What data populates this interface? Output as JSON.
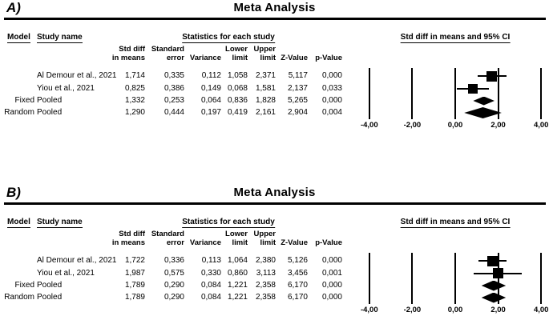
{
  "panels": [
    {
      "label": "A)",
      "title": "Meta Analysis",
      "columns": {
        "model": "Model",
        "study": "Study name",
        "stats_group": "Statistics for each study",
        "plot_group": "Std diff in means and 95% CI"
      },
      "stat_headers": [
        [
          "Std diff",
          "in means"
        ],
        [
          "Standard",
          "error"
        ],
        [
          "",
          "Variance"
        ],
        [
          "Lower",
          "limit"
        ],
        [
          "Upper",
          "limit"
        ],
        [
          "",
          "Z-Value"
        ],
        [
          "",
          "p-Value"
        ]
      ],
      "rows": [
        {
          "model": "",
          "study": "Al Demour et al., 2021",
          "values": [
            "1,714",
            "0,335",
            "0,112",
            "1,058",
            "2,371",
            "5,117",
            "0,000"
          ]
        },
        {
          "model": "",
          "study": "Yiou et al., 2021",
          "values": [
            "0,825",
            "0,386",
            "0,149",
            "0,068",
            "1,581",
            "2,137",
            "0,033"
          ]
        },
        {
          "model": "Fixed",
          "study": "Pooled",
          "values": [
            "1,332",
            "0,253",
            "0,064",
            "0,836",
            "1,828",
            "5,265",
            "0,000"
          ]
        },
        {
          "model": "Random",
          "study": "Pooled",
          "values": [
            "1,290",
            "0,444",
            "0,197",
            "0,419",
            "2,161",
            "2,904",
            "0,004"
          ]
        }
      ],
      "tick_labels": [
        "-4,00",
        "-2,00",
        "0,00",
        "2,00",
        "4,00"
      ]
    },
    {
      "label": "B)",
      "title": "Meta Analysis",
      "columns": {
        "model": "Model",
        "study": "Study name",
        "stats_group": "Statistics for each study",
        "plot_group": "Std diff in means and 95% CI"
      },
      "stat_headers": [
        [
          "Std diff",
          "in means"
        ],
        [
          "Standard",
          "error"
        ],
        [
          "",
          "Variance"
        ],
        [
          "Lower",
          "limit"
        ],
        [
          "Upper",
          "limit"
        ],
        [
          "",
          "Z-Value"
        ],
        [
          "",
          "p-Value"
        ]
      ],
      "rows": [
        {
          "model": "",
          "study": "Al Demour et al., 2021",
          "values": [
            "1,722",
            "0,336",
            "0,113",
            "1,064",
            "2,380",
            "5,126",
            "0,000"
          ]
        },
        {
          "model": "",
          "study": "Yiou et al., 2021",
          "values": [
            "1,987",
            "0,575",
            "0,330",
            "0,860",
            "3,113",
            "3,456",
            "0,001"
          ]
        },
        {
          "model": "Fixed",
          "study": "Pooled",
          "values": [
            "1,789",
            "0,290",
            "0,084",
            "1,221",
            "2,358",
            "6,170",
            "0,000"
          ]
        },
        {
          "model": "Random",
          "study": "Pooled",
          "values": [
            "1,789",
            "0,290",
            "0,084",
            "1,221",
            "2,358",
            "6,170",
            "0,000"
          ]
        }
      ],
      "tick_labels": [
        "-4,00",
        "-2,00",
        "0,00",
        "2,00",
        "4,00"
      ]
    }
  ],
  "chart_data": [
    {
      "type": "scatter",
      "subtype": "forest-plot",
      "panel": "A",
      "title": "Meta Analysis",
      "xlabel": "Std diff in means and 95% CI",
      "xlim": [
        -4,
        4
      ],
      "x_ticks": [
        -4,
        -2,
        0,
        2,
        4
      ],
      "studies": [
        {
          "model": "",
          "study": "Al Demour et al., 2021",
          "std_diff_in_means": 1.714,
          "standard_error": 0.335,
          "variance": 0.112,
          "lower_limit": 1.058,
          "upper_limit": 2.371,
          "z_value": 5.117,
          "p_value": 0.0,
          "marker": "square",
          "size": 13
        },
        {
          "model": "",
          "study": "Yiou et al., 2021",
          "std_diff_in_means": 0.825,
          "standard_error": 0.386,
          "variance": 0.149,
          "lower_limit": 0.068,
          "upper_limit": 1.581,
          "z_value": 2.137,
          "p_value": 0.033,
          "marker": "square",
          "size": 12
        },
        {
          "model": "Fixed",
          "study": "Pooled",
          "std_diff_in_means": 1.332,
          "standard_error": 0.253,
          "variance": 0.064,
          "lower_limit": 0.836,
          "upper_limit": 1.828,
          "z_value": 5.265,
          "p_value": 0.0,
          "marker": "diamond",
          "size": 11
        },
        {
          "model": "Random",
          "study": "Pooled",
          "std_diff_in_means": 1.29,
          "standard_error": 0.444,
          "variance": 0.197,
          "lower_limit": 0.419,
          "upper_limit": 2.161,
          "z_value": 2.904,
          "p_value": 0.004,
          "marker": "diamond",
          "size": 14
        }
      ]
    },
    {
      "type": "scatter",
      "subtype": "forest-plot",
      "panel": "B",
      "title": "Meta Analysis",
      "xlabel": "Std diff in means and 95% CI",
      "xlim": [
        -4,
        4
      ],
      "x_ticks": [
        -4,
        -2,
        0,
        2,
        4
      ],
      "studies": [
        {
          "model": "",
          "study": "Al Demour et al., 2021",
          "std_diff_in_means": 1.722,
          "standard_error": 0.336,
          "variance": 0.113,
          "lower_limit": 1.064,
          "upper_limit": 2.38,
          "z_value": 5.126,
          "p_value": 0.0,
          "marker": "square",
          "size": 13
        },
        {
          "model": "",
          "study": "Yiou et al., 2021",
          "std_diff_in_means": 1.987,
          "standard_error": 0.575,
          "variance": 0.33,
          "lower_limit": 0.86,
          "upper_limit": 3.113,
          "z_value": 3.456,
          "p_value": 0.001,
          "marker": "square",
          "size": 13
        },
        {
          "model": "Fixed",
          "study": "Pooled",
          "std_diff_in_means": 1.789,
          "standard_error": 0.29,
          "variance": 0.084,
          "lower_limit": 1.221,
          "upper_limit": 2.358,
          "z_value": 6.17,
          "p_value": 0.0,
          "marker": "diamond",
          "size": 13
        },
        {
          "model": "Random",
          "study": "Pooled",
          "std_diff_in_means": 1.789,
          "standard_error": 0.29,
          "variance": 0.084,
          "lower_limit": 1.221,
          "upper_limit": 2.358,
          "z_value": 6.17,
          "p_value": 0.0,
          "marker": "diamond",
          "size": 13
        }
      ]
    }
  ]
}
